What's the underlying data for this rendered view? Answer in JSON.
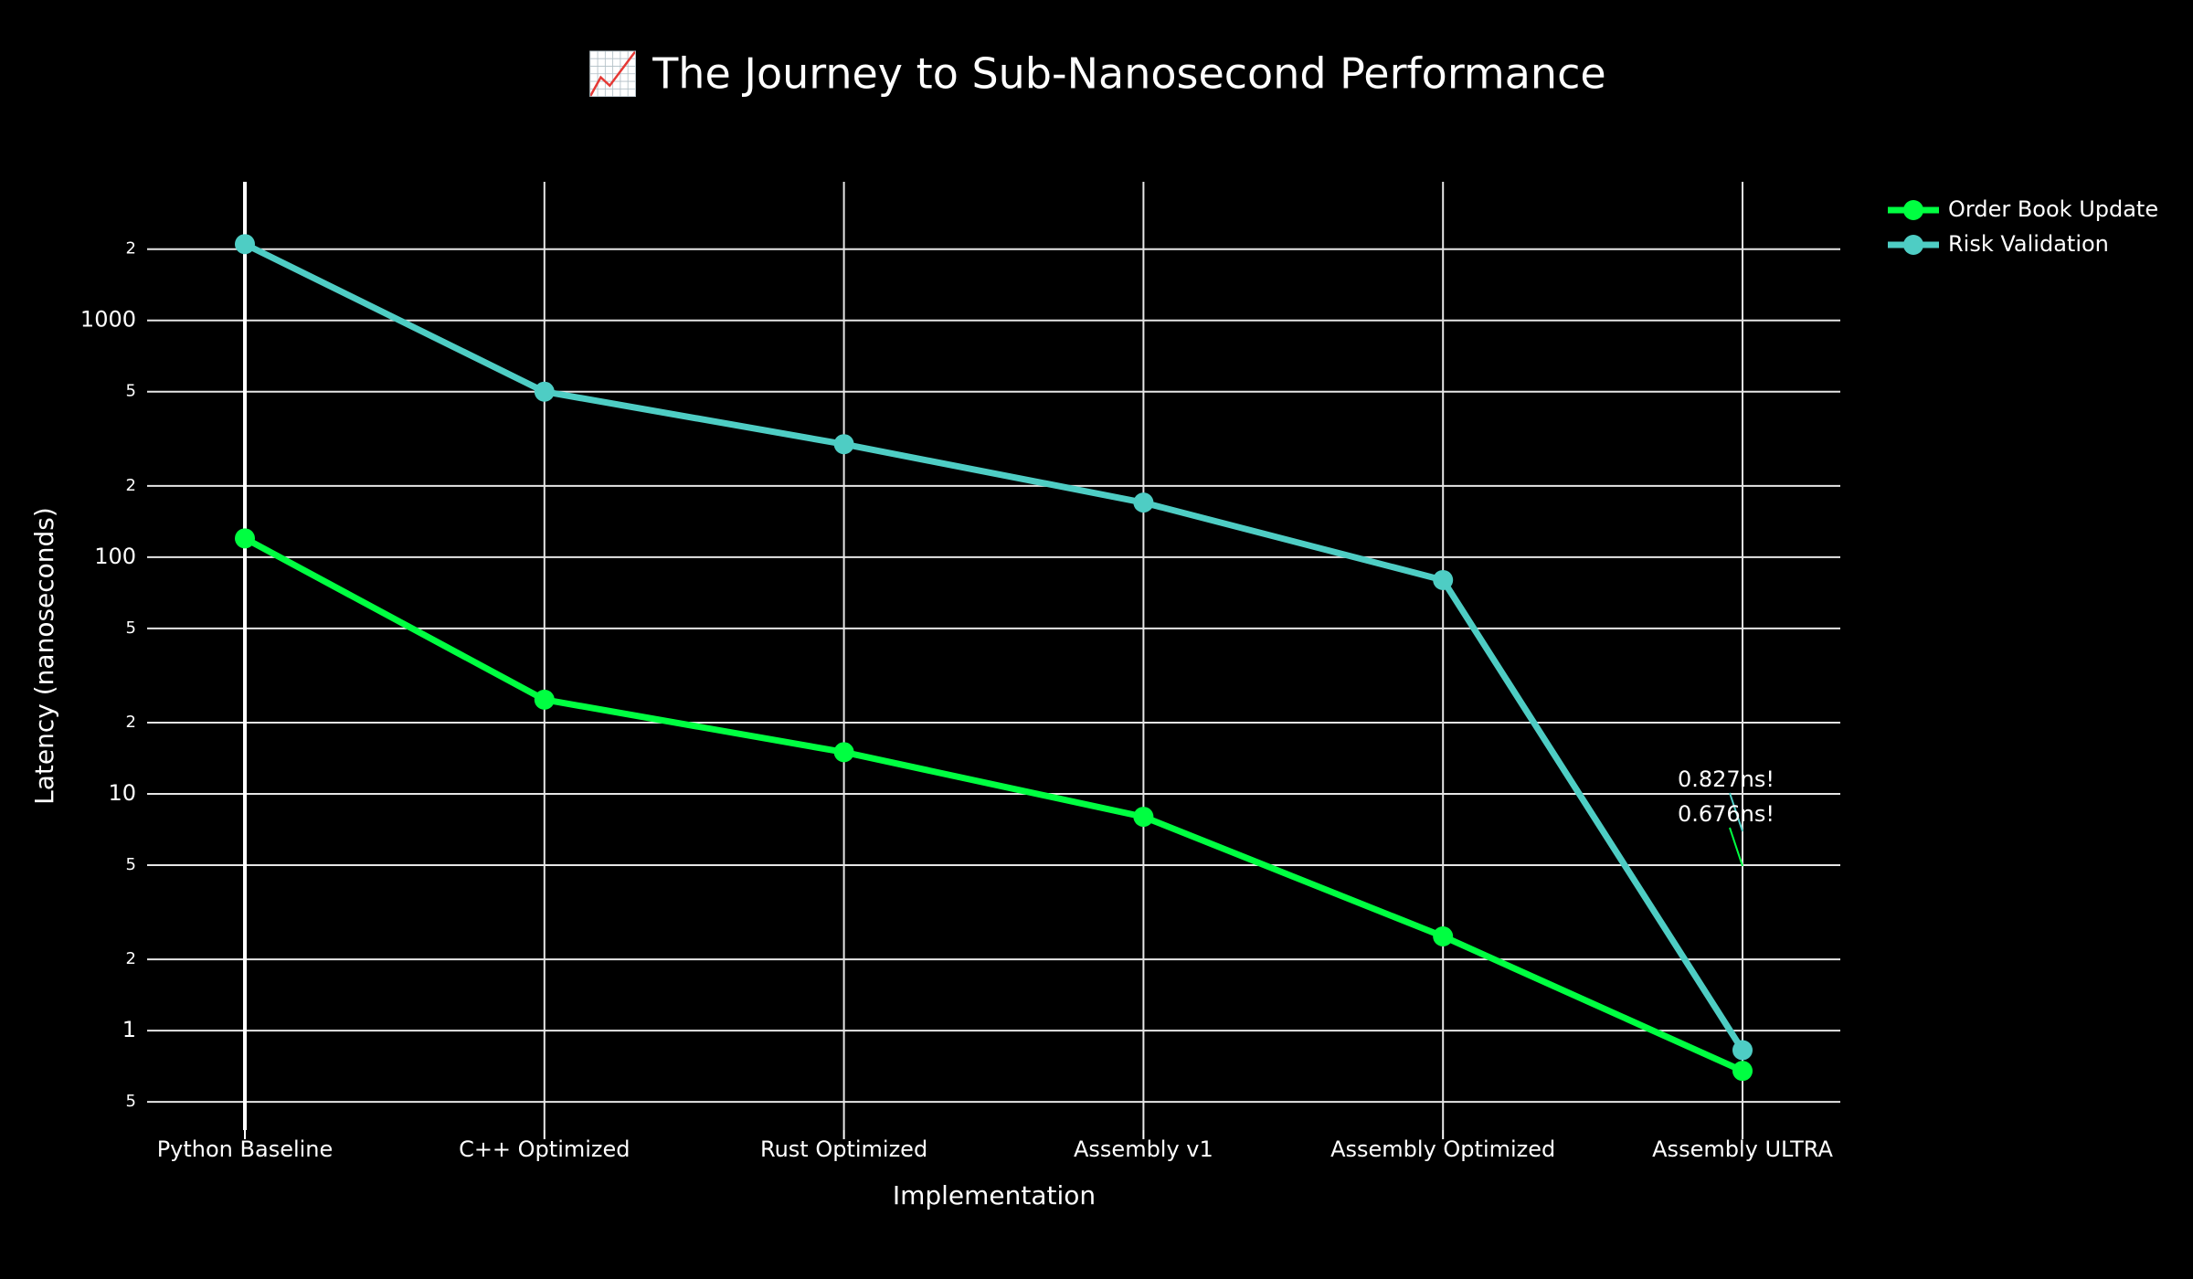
{
  "chart_data": {
    "type": "line",
    "title": "📈 The Journey to Sub-Nanosecond Performance",
    "x_label": "Implementation",
    "y_label": "Latency (nanoseconds)",
    "categories": [
      "Python Baseline",
      "C++ Optimized",
      "Rust Optimized",
      "Assembly v1",
      "Assembly Optimized",
      "Assembly ULTRA"
    ],
    "series": [
      {
        "name": "Order Book Update",
        "color": "#00ff41",
        "values": [
          120,
          25,
          15,
          8,
          2.5,
          0.676
        ]
      },
      {
        "name": "Risk Validation",
        "color": "#4ecdc4",
        "values": [
          2100,
          500,
          300,
          170,
          80,
          0.827
        ]
      }
    ],
    "log_y": true,
    "ylim": [
      0.38,
      3850
    ],
    "yticks": [
      {
        "value": 0.5,
        "label": "5"
      },
      1,
      2,
      5,
      10,
      {
        "value": 20,
        "label": "2"
      },
      {
        "value": 50,
        "label": "5"
      },
      100,
      {
        "value": 200,
        "label": "2"
      },
      {
        "value": 500,
        "label": "5"
      },
      1000,
      {
        "value": 2000,
        "label": "2"
      }
    ],
    "grid": true,
    "legend": "top-right-outside",
    "annotations": [
      {
        "text": "0.827ns!",
        "x": "Assembly ULTRA",
        "y": 0.827,
        "color": "#4ecdc4"
      },
      {
        "text": "0.676ns!",
        "x": "Assembly ULTRA",
        "y": 0.676,
        "color": "#00ff41"
      }
    ]
  }
}
